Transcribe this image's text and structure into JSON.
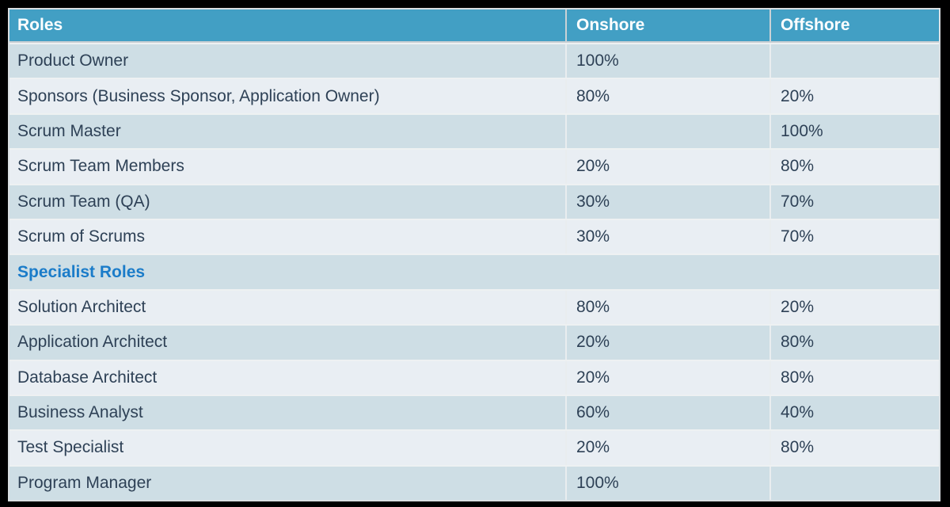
{
  "table": {
    "columns": [
      {
        "label": "Roles"
      },
      {
        "label": "Onshore"
      },
      {
        "label": "Offshore"
      }
    ],
    "rows": [
      {
        "type": "data",
        "role": "Product Owner",
        "onshore": "100%",
        "offshore": ""
      },
      {
        "type": "data",
        "role": "Sponsors (Business Sponsor, Application Owner)",
        "onshore": "80%",
        "offshore": "20%"
      },
      {
        "type": "data",
        "role": "Scrum Master",
        "onshore": "",
        "offshore": "100%"
      },
      {
        "type": "data",
        "role": "Scrum Team Members",
        "onshore": "20%",
        "offshore": "80%"
      },
      {
        "type": "data",
        "role": "Scrum Team (QA)",
        "onshore": "30%",
        "offshore": "70%"
      },
      {
        "type": "data",
        "role": "Scrum of Scrums",
        "onshore": "30%",
        "offshore": "70%"
      },
      {
        "type": "section",
        "role": "Specialist Roles",
        "onshore": "",
        "offshore": ""
      },
      {
        "type": "data",
        "role": "Solution Architect",
        "onshore": "80%",
        "offshore": "20%"
      },
      {
        "type": "data",
        "role": "Application Architect",
        "onshore": "20%",
        "offshore": "80%"
      },
      {
        "type": "data",
        "role": "Database Architect",
        "onshore": "20%",
        "offshore": "80%"
      },
      {
        "type": "data",
        "role": "Business Analyst",
        "onshore": "60%",
        "offshore": "40%"
      },
      {
        "type": "data",
        "role": "Test Specialist",
        "onshore": "20%",
        "offshore": "80%"
      },
      {
        "type": "data",
        "role": "Program Manager",
        "onshore": "100%",
        "offshore": ""
      }
    ]
  },
  "chart_data": {
    "type": "table",
    "title": "Roles — Onshore / Offshore allocation",
    "columns": [
      "Roles",
      "Onshore",
      "Offshore"
    ],
    "rows": [
      [
        "Product Owner",
        "100%",
        ""
      ],
      [
        "Sponsors (Business Sponsor, Application Owner)",
        "80%",
        "20%"
      ],
      [
        "Scrum Master",
        "",
        "100%"
      ],
      [
        "Scrum Team Members",
        "20%",
        "80%"
      ],
      [
        "Scrum Team (QA)",
        "30%",
        "70%"
      ],
      [
        "Scrum of Scrums",
        "30%",
        "70%"
      ],
      [
        "Specialist Roles",
        "",
        ""
      ],
      [
        "Solution Architect",
        "80%",
        "20%"
      ],
      [
        "Application Architect",
        "20%",
        "80%"
      ],
      [
        "Database Architect",
        "20%",
        "80%"
      ],
      [
        "Business Analyst",
        "60%",
        "40%"
      ],
      [
        "Test Specialist",
        "20%",
        "80%"
      ],
      [
        "Program Manager",
        "100%",
        ""
      ]
    ],
    "section_rows": [
      6
    ],
    "layout": {
      "striped": true,
      "first_data_row_shade": "dark"
    }
  },
  "colors": {
    "header_bg": "#429fc4",
    "header_text": "#ffffff",
    "row_dark_bg": "#cedee5",
    "row_light_bg": "#e9eef3",
    "body_text": "#2e4156",
    "section_text": "#1b7cc9",
    "page_bg": "#000000",
    "grid_line": "#eef1f2"
  }
}
